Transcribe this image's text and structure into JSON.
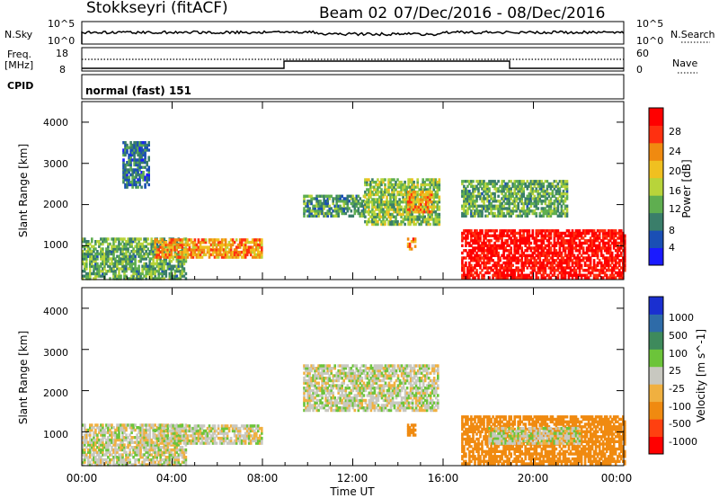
{
  "header": {
    "station": "Stokkseyri (fitACF)",
    "beam": "Beam 02",
    "date_range": "07/Dec/2016 - 08/Dec/2016"
  },
  "sky_panel": {
    "left_label": "N.Sky",
    "left_ticks": [
      "10^5",
      "10^0"
    ],
    "right_ticks": [
      "10^5",
      "10^0"
    ],
    "right_label": "N.Search"
  },
  "freq_panel": {
    "left_label_line1": "Freq.",
    "left_label_line2": "[MHz]",
    "left_ticks": [
      "18",
      "8"
    ],
    "right_ticks": [
      "60",
      "0"
    ],
    "right_label": "Nave",
    "cpid_label": "CPID",
    "mode_text": "normal (fast) 151"
  },
  "x_axis": {
    "ticks": [
      "00:00",
      "04:00",
      "08:00",
      "12:00",
      "16:00",
      "20:00",
      "00:00"
    ],
    "label": "Time UT"
  },
  "colors": {
    "power": [
      "#1a1aff",
      "#1a4fb5",
      "#3a7e6a",
      "#5fae50",
      "#b8d43a",
      "#f0c020",
      "#f08a10",
      "#ff3010",
      "#ff0000"
    ],
    "velocity": [
      "#1a2fd0",
      "#2e6ba8",
      "#3e8a5c",
      "#6cc43a",
      "#c8c8c0",
      "#f0b040",
      "#f08a10",
      "#ff4010",
      "#ff0000"
    ]
  },
  "chart_data": [
    {
      "type": "heatmap",
      "title": "Power",
      "ylabel": "Slant Range [km]",
      "xlabel": "",
      "ylim": [
        180,
        4500
      ],
      "yticks": [
        "1000",
        "2000",
        "3000",
        "4000"
      ],
      "colorbar_label": "Power [dB]",
      "colorbar_ticks": [
        "4",
        "8",
        "12",
        "16",
        "20",
        "24",
        "28"
      ],
      "regions": [
        {
          "t": [
            0.0,
            4.6
          ],
          "r": [
            180,
            1200
          ],
          "value_db": 10
        },
        {
          "t": [
            3.2,
            8.0
          ],
          "r": [
            700,
            1150
          ],
          "value_db": 20
        },
        {
          "t": [
            1.8,
            3.0
          ],
          "r": [
            2400,
            3500
          ],
          "value_db": 6
        },
        {
          "t": [
            9.8,
            12.5
          ],
          "r": [
            1700,
            2200
          ],
          "value_db": 9
        },
        {
          "t": [
            12.5,
            15.8
          ],
          "r": [
            1500,
            2600
          ],
          "value_db": 12
        },
        {
          "t": [
            14.4,
            15.5
          ],
          "r": [
            1800,
            2300
          ],
          "value_db": 20
        },
        {
          "t": [
            14.4,
            14.8
          ],
          "r": [
            900,
            1200
          ],
          "value_db": 22
        },
        {
          "t": [
            16.8,
            24.0
          ],
          "r": [
            200,
            1400
          ],
          "value_db": 28
        },
        {
          "t": [
            16.8,
            21.5
          ],
          "r": [
            1700,
            2600
          ],
          "value_db": 10
        }
      ]
    },
    {
      "type": "heatmap",
      "title": "Velocity",
      "ylabel": "Slant Range [km]",
      "xlabel": "Time UT",
      "ylim": [
        180,
        4500
      ],
      "yticks": [
        "1000",
        "2000",
        "3000",
        "4000"
      ],
      "colorbar_label": "Velocity [m s^-1]",
      "colorbar_ticks": [
        "1000",
        "500",
        "100",
        "25",
        "-25",
        "-100",
        "-500",
        "-1000"
      ],
      "regions": [
        {
          "t": [
            0.0,
            4.6
          ],
          "r": [
            180,
            1200
          ],
          "value_ms": 0
        },
        {
          "t": [
            3.2,
            8.0
          ],
          "r": [
            700,
            1150
          ],
          "value_ms": 0
        },
        {
          "t": [
            9.8,
            15.8
          ],
          "r": [
            1500,
            2600
          ],
          "value_ms": 0
        },
        {
          "t": [
            14.4,
            14.8
          ],
          "r": [
            900,
            1200
          ],
          "value_ms": -300
        },
        {
          "t": [
            16.8,
            24.0
          ],
          "r": [
            200,
            1400
          ],
          "value_ms": -300
        },
        {
          "t": [
            18.0,
            22.0
          ],
          "r": [
            700,
            1100
          ],
          "value_ms": 0
        }
      ]
    }
  ]
}
